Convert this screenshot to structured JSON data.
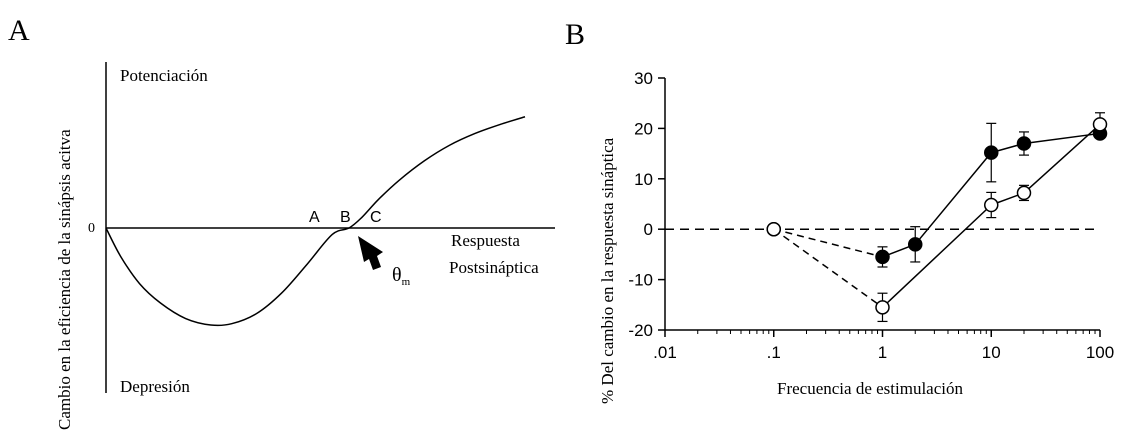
{
  "chart_data": [
    {
      "panel_label": "A",
      "type": "line",
      "ylabel": "Cambio en la eficiencia de la sinápsis acitva",
      "xlabel": [
        "Respuesta",
        "Postsináptica"
      ],
      "top_label": "Potenciación",
      "bottom_label": "Depresión",
      "zero_label": "0",
      "point_labels": [
        "A",
        "B",
        "C"
      ],
      "threshold_label": "θ",
      "threshold_subscript": "m",
      "curve": {
        "x": [
          0,
          0.035,
          0.08,
          0.13,
          0.19,
          0.25,
          0.3,
          0.36,
          0.42,
          0.48,
          0.54,
          0.58,
          0.61,
          0.65,
          0.7,
          0.76,
          0.82,
          0.88,
          0.94,
          1.0
        ],
        "y": [
          0,
          -0.22,
          -0.43,
          -0.58,
          -0.7,
          -0.75,
          -0.74,
          -0.66,
          -0.5,
          -0.28,
          -0.05,
          0.0,
          0.08,
          0.22,
          0.37,
          0.52,
          0.64,
          0.73,
          0.8,
          0.86
        ]
      },
      "ylim": [
        -1.3,
        1.3
      ],
      "xlim": [
        0,
        1.0
      ]
    },
    {
      "panel_label": "B",
      "type": "line",
      "xlabel": "Frecuencia de estimulación",
      "ylabel": "% Del cambio en la respuesta sináptica",
      "x_scale": "log",
      "xlim": [
        0.01,
        100
      ],
      "ylim": [
        -20,
        30
      ],
      "x_ticks": [
        0.01,
        0.1,
        1,
        10,
        100
      ],
      "x_tick_labels": [
        ".01",
        ".1",
        "1",
        "10",
        "100"
      ],
      "y_ticks": [
        -20,
        -10,
        0,
        10,
        20,
        30
      ],
      "y_tick_labels": [
        "-20",
        "-10",
        "0",
        "10",
        "20",
        "30"
      ],
      "series": [
        {
          "marker": "filled",
          "x": [
            0.1,
            1,
            2,
            10,
            20,
            100
          ],
          "y": [
            0,
            -5.5,
            -3,
            15.2,
            17,
            19
          ],
          "err": [
            0,
            2.0,
            3.5,
            5.8,
            2.3,
            0.8
          ]
        },
        {
          "marker": "open",
          "x": [
            0.1,
            1,
            10,
            20,
            100
          ],
          "y": [
            0,
            -15.5,
            4.8,
            7.2,
            20.8
          ],
          "err": [
            0,
            2.8,
            2.5,
            1.5,
            2.3
          ]
        }
      ],
      "reference_line": 0
    }
  ]
}
